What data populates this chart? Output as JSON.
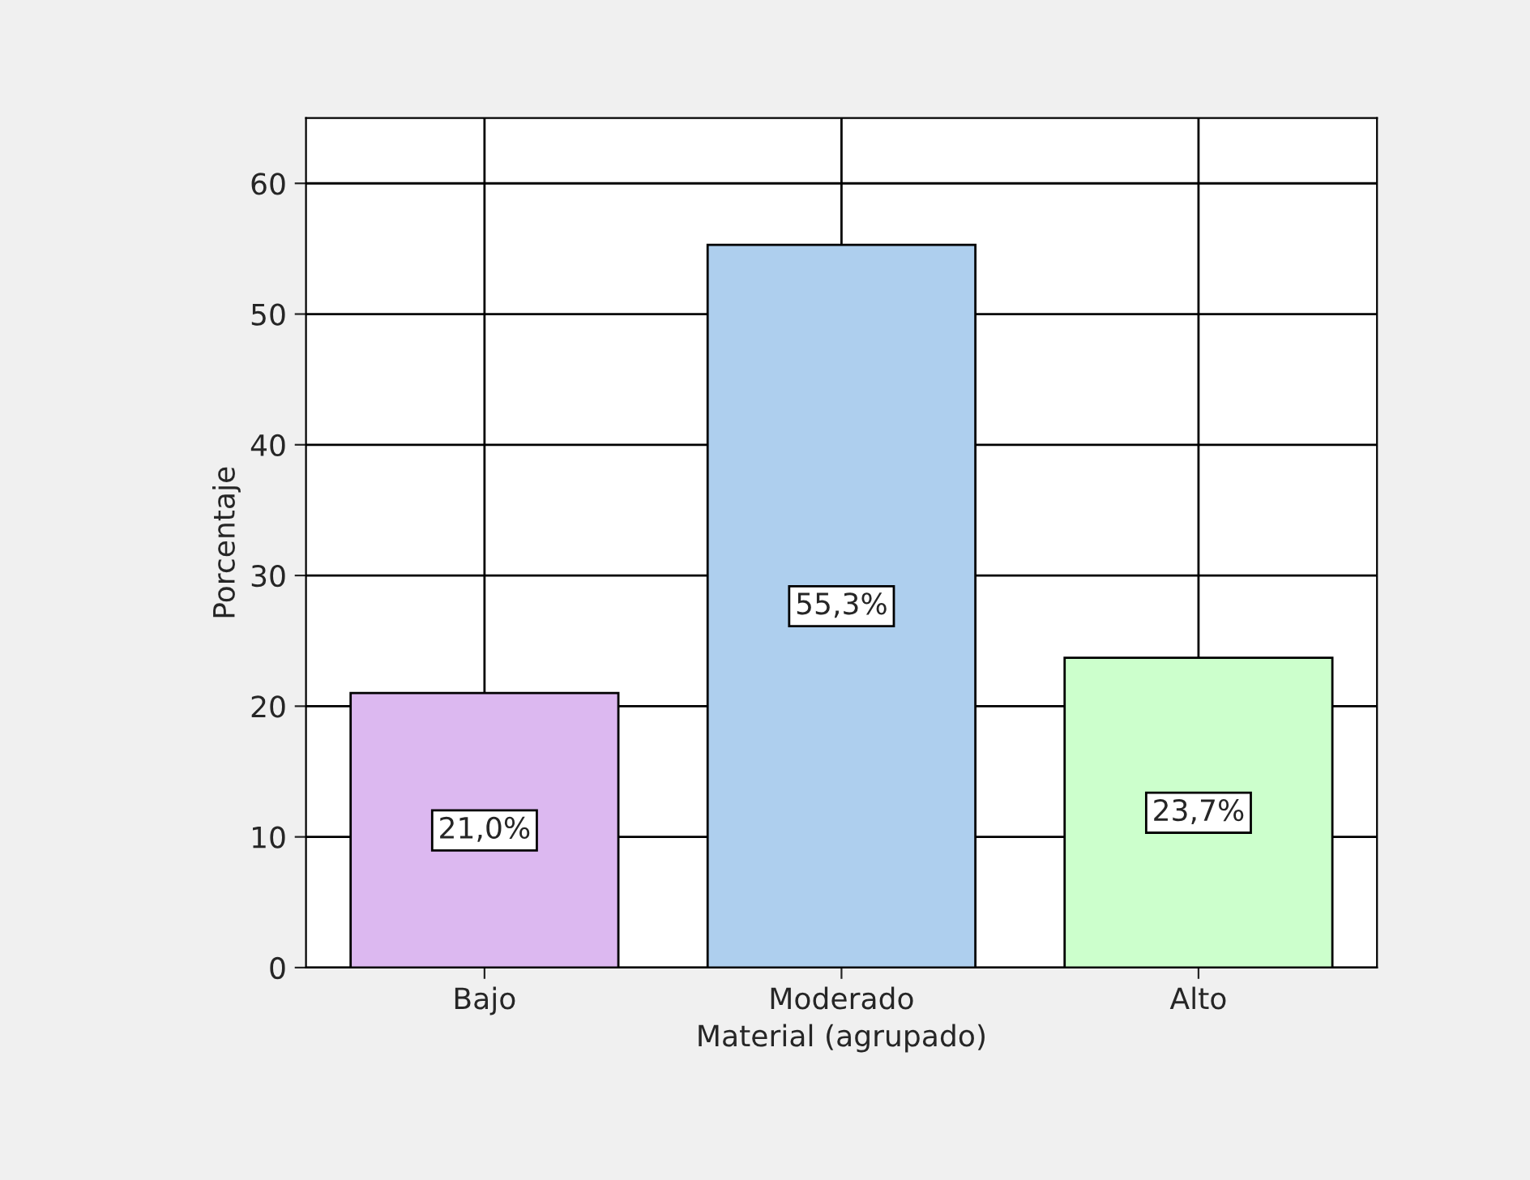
{
  "chart_data": {
    "type": "bar",
    "xlabel": "Material (agrupado)",
    "ylabel": "Porcentaje",
    "categories": [
      "Bajo",
      "Moderado",
      "Alto"
    ],
    "values": [
      21.0,
      55.3,
      23.7
    ],
    "colors": [
      "#dcb8f0",
      "#aecfee",
      "#ccffcc"
    ],
    "value_labels": [
      "21,0%",
      "55,3%",
      "23,7%"
    ],
    "ylim": [
      0,
      65
    ],
    "yticks": [
      0,
      10,
      20,
      30,
      40,
      50,
      60
    ],
    "grid": true
  }
}
